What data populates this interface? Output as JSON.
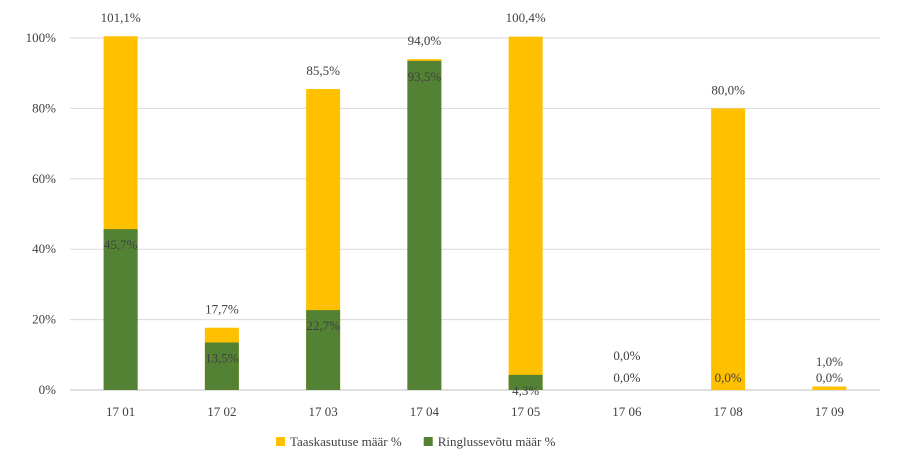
{
  "chart_data": {
    "type": "bar",
    "categories": [
      "17 01",
      "17 02",
      "17 03",
      "17 04",
      "17 05",
      "17 06",
      "17 08",
      "17 09"
    ],
    "series": [
      {
        "name": "Taaskasutuse määr %",
        "color": "#FFC000",
        "values": [
          101.1,
          17.7,
          85.5,
          94.0,
          100.4,
          0.0,
          80.0,
          1.0
        ],
        "labels": [
          "101,1%",
          "17,7%",
          "85,5%",
          "94,0%",
          "100,4%",
          "0,0%",
          "80,0%",
          "1,0%"
        ]
      },
      {
        "name": "Ringlussevõtu määr %",
        "color": "#548235",
        "values": [
          45.7,
          13.5,
          22.7,
          93.5,
          4.3,
          0.0,
          0.0,
          0.0
        ],
        "labels": [
          "45,7%",
          "13,5%",
          "22,7%",
          "93,5%",
          "4,3%",
          "0,0%",
          "0,0%",
          "0,0%"
        ]
      }
    ],
    "ylim": [
      0,
      100
    ],
    "yticks": [
      "0%",
      "20%",
      "40%",
      "60%",
      "80%",
      "100%"
    ],
    "grid": true,
    "legend_position": "bottom"
  }
}
